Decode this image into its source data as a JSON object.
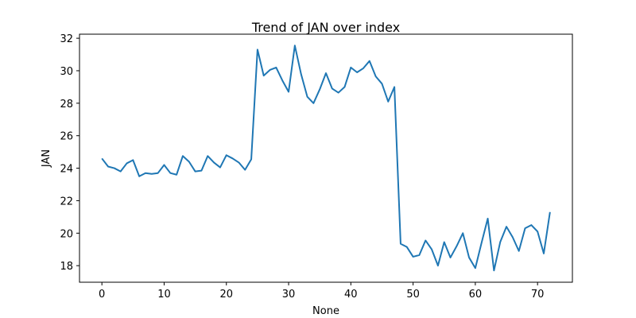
{
  "chart_data": {
    "type": "line",
    "title": "Trend of JAN over index",
    "xlabel": "None",
    "ylabel": "JAN",
    "xlim": [
      -3.6,
      75.6
    ],
    "ylim": [
      16.98,
      32.25
    ],
    "xticks": [
      0,
      10,
      20,
      30,
      40,
      50,
      60,
      70
    ],
    "yticks": [
      18,
      20,
      22,
      24,
      26,
      28,
      30,
      32
    ],
    "grid": false,
    "legend": "none",
    "series": [
      {
        "color": "#1f77b4",
        "x": [
          0,
          1,
          2,
          3,
          4,
          5,
          6,
          7,
          8,
          9,
          10,
          11,
          12,
          13,
          14,
          15,
          16,
          17,
          18,
          19,
          20,
          21,
          22,
          23,
          24,
          25,
          26,
          27,
          28,
          29,
          30,
          31,
          32,
          33,
          34,
          35,
          36,
          37,
          38,
          39,
          40,
          41,
          42,
          43,
          44,
          45,
          46,
          47,
          48,
          49,
          50,
          51,
          52,
          53,
          54,
          55,
          56,
          57,
          58,
          59,
          60,
          61,
          62,
          63,
          64,
          65,
          66,
          67,
          68,
          69,
          70,
          71,
          72
        ],
        "y": [
          24.6,
          24.1,
          24.0,
          23.8,
          24.3,
          24.5,
          23.5,
          23.7,
          23.65,
          23.7,
          24.2,
          23.7,
          23.6,
          24.75,
          24.4,
          23.8,
          23.85,
          24.75,
          24.35,
          24.05,
          24.8,
          24.6,
          24.35,
          23.9,
          24.55,
          31.3,
          29.7,
          30.05,
          30.2,
          29.4,
          28.7,
          31.55,
          29.8,
          28.4,
          28.0,
          28.85,
          29.85,
          28.9,
          28.65,
          29.0,
          30.2,
          29.9,
          30.15,
          30.6,
          29.65,
          29.2,
          28.1,
          29.0,
          19.35,
          19.15,
          18.55,
          18.65,
          19.55,
          19.0,
          18.0,
          19.45,
          18.5,
          19.2,
          20.0,
          18.5,
          17.85,
          19.4,
          20.9,
          17.7,
          19.45,
          20.4,
          19.75,
          18.9,
          20.3,
          20.5,
          20.1,
          18.75,
          21.3
        ]
      }
    ]
  }
}
